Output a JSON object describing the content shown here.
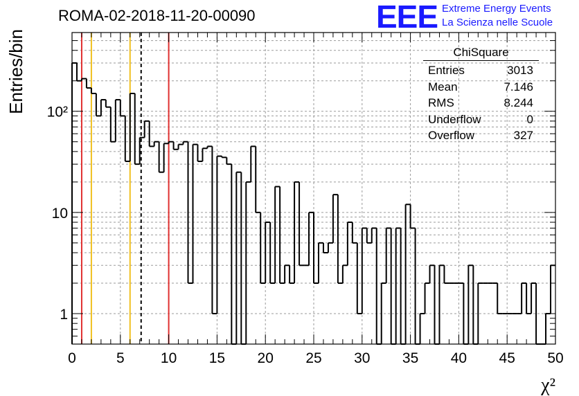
{
  "title": "ROMA-02-2018-11-20-00090",
  "logo": {
    "text": "EEE",
    "line1": "Extreme Energy Events",
    "line2": "La Scienza nelle Scuole",
    "color": "#1a1aff"
  },
  "stats": {
    "name": "ChiSquare",
    "rows": [
      {
        "label": "Entries",
        "value": "3013"
      },
      {
        "label": "Mean",
        "value": "7.146"
      },
      {
        "label": "RMS",
        "value": "8.244"
      },
      {
        "label": "Underflow",
        "value": "0"
      },
      {
        "label": "Overflow",
        "value": "327"
      }
    ]
  },
  "chart_data": {
    "type": "bar",
    "style": "step-histogram",
    "xlabel": "χ²",
    "ylabel": "Entries/bin",
    "xlim": [
      0,
      50
    ],
    "ylim": [
      0.5,
      600
    ],
    "yscale": "log",
    "grid": true,
    "bin_width": 0.5,
    "xticks": [
      0,
      5,
      10,
      15,
      20,
      25,
      30,
      35,
      40,
      45,
      50
    ],
    "yticks": [
      {
        "value": 1,
        "label": "1"
      },
      {
        "value": 10,
        "label": "10"
      },
      {
        "value": 100,
        "label": "10²"
      }
    ],
    "values": [
      300,
      200,
      210,
      170,
      150,
      90,
      130,
      110,
      50,
      130,
      90,
      32,
      150,
      30,
      55,
      80,
      45,
      50,
      25,
      48,
      50,
      42,
      47,
      50,
      2,
      47,
      32,
      43,
      45,
      1,
      36,
      35,
      30,
      0,
      25,
      0.5,
      20,
      45,
      10,
      2,
      8,
      2,
      18,
      2,
      3,
      2,
      20,
      3,
      3,
      10,
      2,
      5,
      4,
      5,
      15,
      2,
      3,
      8,
      5,
      1,
      7,
      5,
      7,
      0.5,
      2,
      7,
      0.5,
      7,
      0.5,
      12,
      7,
      0.5,
      1,
      2,
      3,
      0.5,
      3,
      2,
      2,
      2,
      2,
      0.5,
      3,
      0.5,
      2,
      2,
      2,
      2,
      1,
      1,
      1,
      1,
      1,
      2,
      1,
      2,
      0.5,
      0.5,
      1,
      3
    ],
    "vertical_lines": [
      {
        "x": 1,
        "color": "#e03030",
        "style": "solid"
      },
      {
        "x": 2,
        "color": "#f0c020",
        "style": "solid"
      },
      {
        "x": 6,
        "color": "#f0c020",
        "style": "solid"
      },
      {
        "x": 7.146,
        "color": "#000000",
        "style": "dashed"
      },
      {
        "x": 10,
        "color": "#e03030",
        "style": "solid"
      }
    ]
  }
}
